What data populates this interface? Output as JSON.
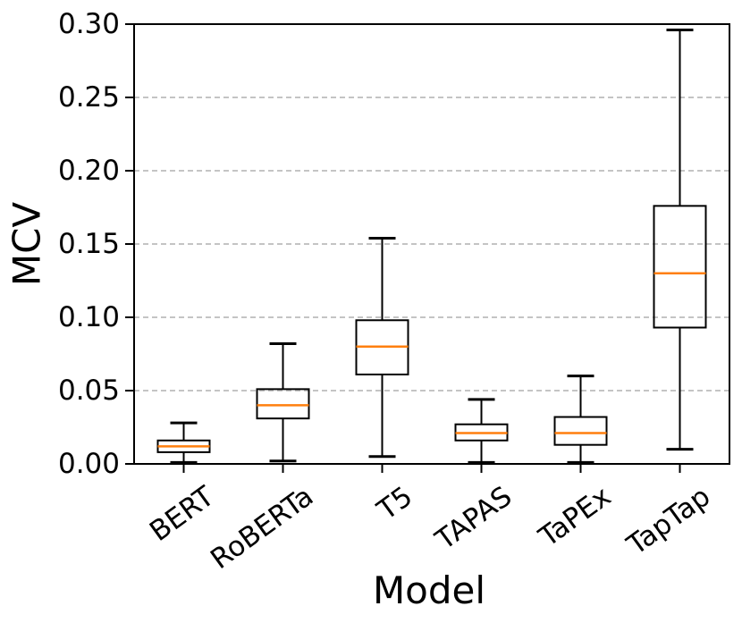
{
  "chart_data": {
    "type": "box",
    "title": "",
    "xlabel": "Model",
    "ylabel": "MCV",
    "ylim": [
      0.0,
      0.3
    ],
    "yticks": [
      0.0,
      0.05,
      0.1,
      0.15,
      0.2,
      0.25,
      0.3
    ],
    "ytick_labels": [
      "0.00",
      "0.05",
      "0.10",
      "0.15",
      "0.20",
      "0.25",
      "0.30"
    ],
    "categories": [
      "BERT",
      "RoBERTa",
      "T5",
      "TAPAS",
      "TaPEx",
      "TapTap"
    ],
    "boxes": [
      {
        "model": "BERT",
        "whislo": 0.001,
        "q1": 0.008,
        "med": 0.012,
        "q3": 0.016,
        "whishi": 0.028
      },
      {
        "model": "RoBERTa",
        "whislo": 0.002,
        "q1": 0.031,
        "med": 0.04,
        "q3": 0.051,
        "whishi": 0.082
      },
      {
        "model": "T5",
        "whislo": 0.005,
        "q1": 0.061,
        "med": 0.08,
        "q3": 0.098,
        "whishi": 0.154
      },
      {
        "model": "TAPAS",
        "whislo": 0.001,
        "q1": 0.016,
        "med": 0.021,
        "q3": 0.027,
        "whishi": 0.044
      },
      {
        "model": "TaPEx",
        "whislo": 0.001,
        "q1": 0.013,
        "med": 0.021,
        "q3": 0.032,
        "whishi": 0.06
      },
      {
        "model": "TapTap",
        "whislo": 0.01,
        "q1": 0.093,
        "med": 0.13,
        "q3": 0.176,
        "whishi": 0.296
      }
    ],
    "grid": {
      "axis": "y",
      "style": "dashed",
      "visible": true
    },
    "legend": {
      "visible": false
    },
    "colors": {
      "median": "#ff7f0e",
      "box": "#000000",
      "grid": "#b0b0b0",
      "text": "#000000",
      "background": "#ffffff"
    }
  }
}
